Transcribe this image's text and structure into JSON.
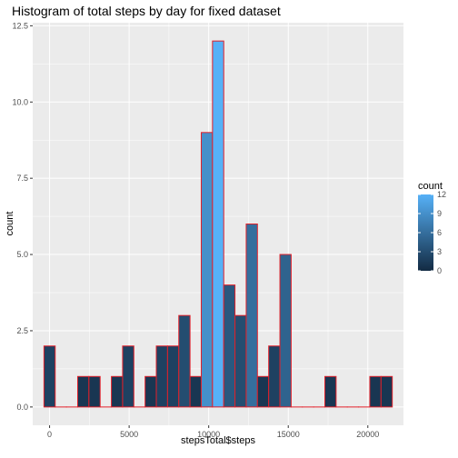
{
  "chart_data": {
    "type": "bar",
    "title": "Histogram of total steps by day for fixed dataset",
    "xlabel": "stepsTotal$steps",
    "ylabel": "count",
    "bin_width": 706.1,
    "bin_centers": [
      0,
      706.1,
      1412.2,
      2118.3,
      2824.4,
      3530.5,
      4236.6,
      4942.8,
      5648.9,
      6355.0,
      7061.1,
      7767.2,
      8473.3,
      9179.4,
      9885.5,
      10591.6,
      11297.7,
      12003.8,
      12709.9,
      13416.0,
      14122.1,
      14828.2,
      15534.4,
      16240.5,
      16946.6,
      17652.7,
      18358.8,
      19064.9,
      19771.0,
      20477.1,
      21183.2
    ],
    "values": [
      2,
      0,
      0,
      1,
      1,
      0,
      1,
      2,
      0,
      1,
      2,
      2,
      3,
      1,
      9,
      12,
      4,
      3,
      6,
      1,
      2,
      5,
      0,
      0,
      0,
      1,
      0,
      0,
      0,
      1,
      1
    ],
    "xlim": [
      -1060,
      22240
    ],
    "ylim": [
      -0.6,
      12.6
    ],
    "x_ticks": [
      0,
      5000,
      10000,
      15000,
      20000
    ],
    "x_tick_labels": [
      "0",
      "5000",
      "10000",
      "15000",
      "20000"
    ],
    "y_ticks": [
      0,
      2.5,
      5,
      7.5,
      10,
      12.5
    ],
    "y_tick_labels": [
      "0.0",
      "2.5",
      "5.0",
      "7.5",
      "10.0",
      "12.5"
    ],
    "grid": true,
    "bar_outline_color": "#e0202a",
    "panel_background": "#ebebeb",
    "gridline_color": "#ffffff",
    "legend": {
      "title": "count",
      "placement": "right",
      "ticks": [
        0,
        3,
        6,
        9,
        12
      ],
      "tick_labels": [
        "0",
        "3",
        "6",
        "9",
        "12"
      ],
      "range": [
        0,
        12
      ],
      "color_low": "#132b43",
      "color_high": "#56b1f7"
    }
  }
}
